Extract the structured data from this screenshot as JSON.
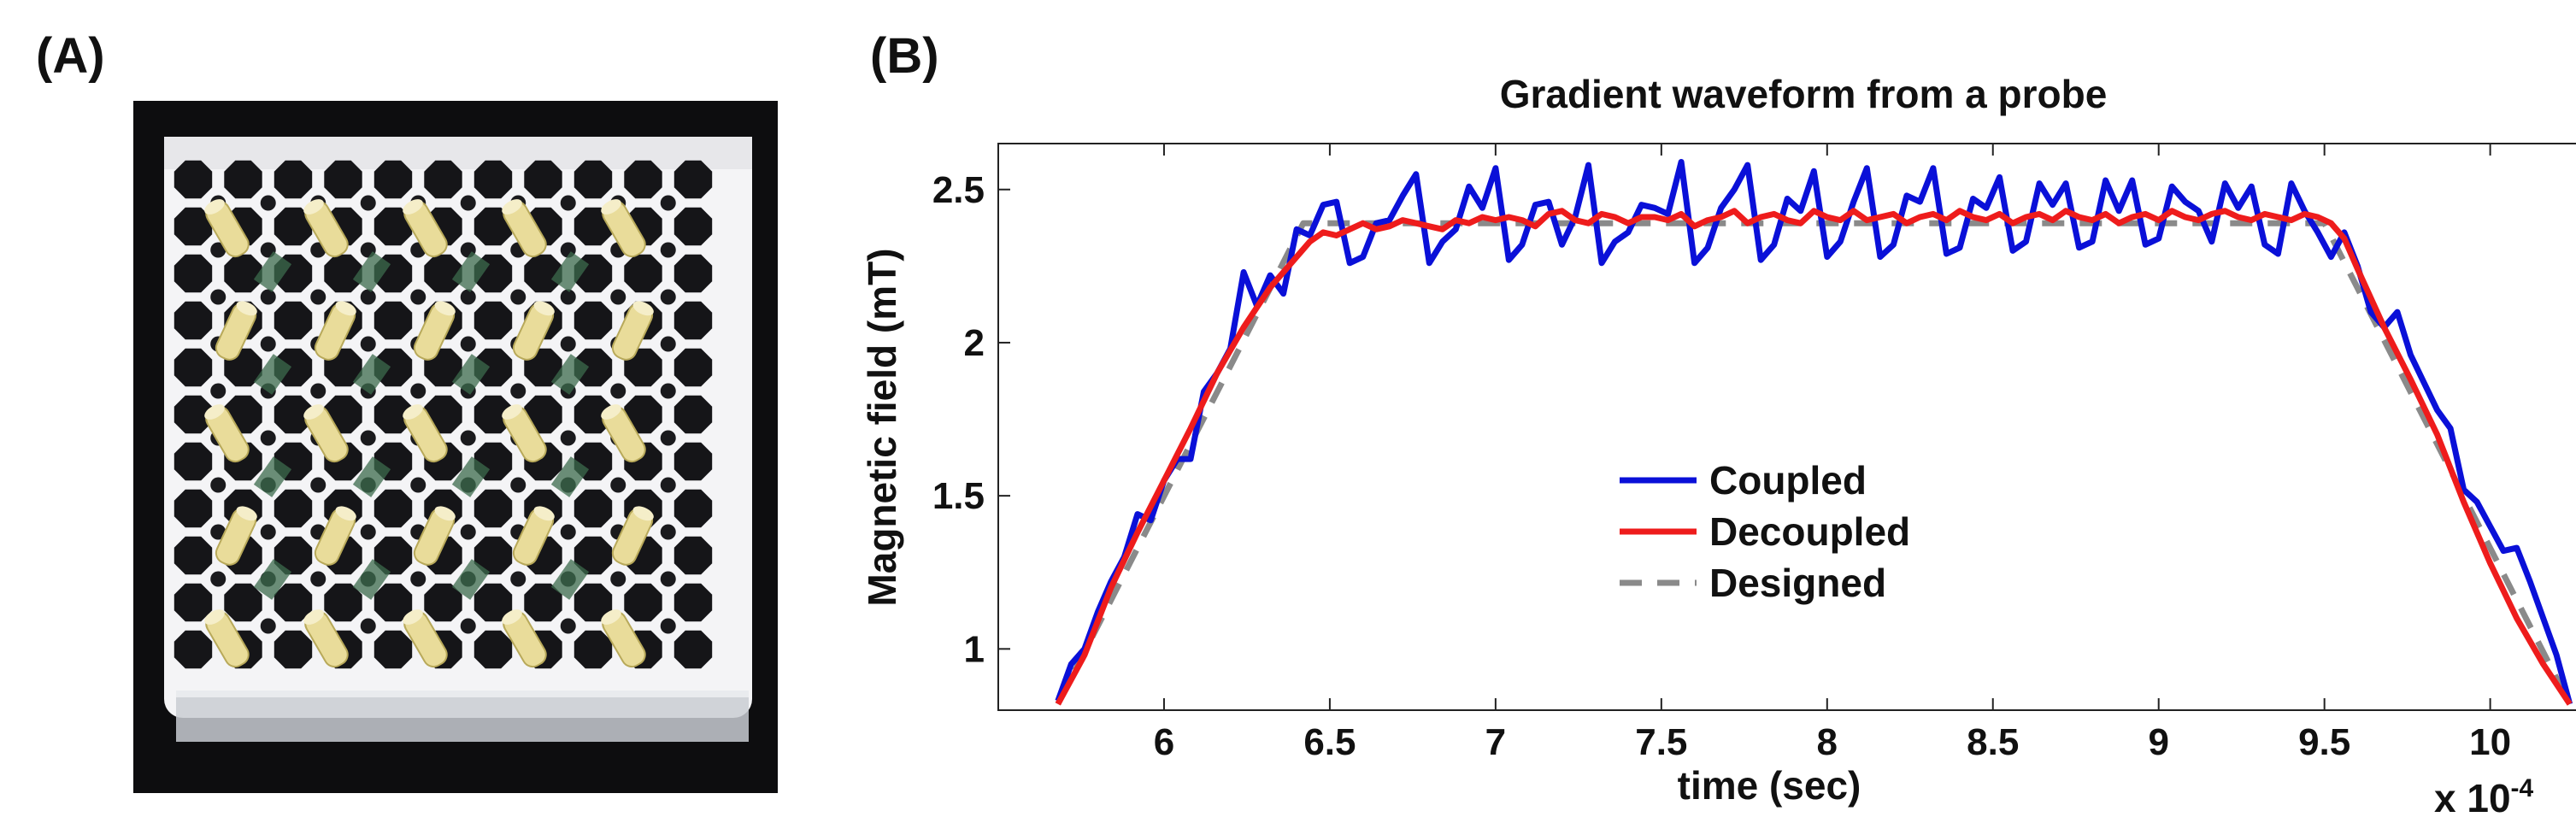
{
  "panels": {
    "a_label": "(A)",
    "b_label": "(B)"
  },
  "photo": {
    "description_icon": "multi-probe-array-photo"
  },
  "chart_data": {
    "type": "line",
    "title": "Gradient waveform from a probe",
    "xlabel": "time (sec)",
    "ylabel": "Magnetic field (mT)",
    "x_multiplier_label": "x 10",
    "x_multiplier_exp": "-4",
    "xlim": [
      5.5,
      10.3
    ],
    "ylim": [
      0.8,
      2.65
    ],
    "xticks": [
      6,
      6.5,
      7,
      7.5,
      8,
      8.5,
      9,
      9.5,
      10
    ],
    "xtick_labels": [
      "6",
      "6.5",
      "7",
      "7.5",
      "8",
      "8.5",
      "9",
      "9.5",
      "10"
    ],
    "yticks": [
      1,
      1.5,
      2,
      2.5
    ],
    "ytick_labels": [
      "1",
      "1.5",
      "2",
      "2.5"
    ],
    "legend_position": "center",
    "series": [
      {
        "name": "Coupled",
        "color": "#0a10d8",
        "style": "solid",
        "x": [
          5.68,
          5.72,
          5.76,
          5.8,
          5.84,
          5.88,
          5.92,
          5.96,
          6.0,
          6.04,
          6.08,
          6.12,
          6.16,
          6.2,
          6.24,
          6.28,
          6.32,
          6.36,
          6.4,
          6.44,
          6.48,
          6.52,
          6.56,
          6.6,
          6.64,
          6.68,
          6.72,
          6.76,
          6.8,
          6.84,
          6.88,
          6.92,
          6.96,
          7.0,
          7.04,
          7.08,
          7.12,
          7.16,
          7.2,
          7.24,
          7.28,
          7.32,
          7.36,
          7.4,
          7.44,
          7.48,
          7.52,
          7.56,
          7.6,
          7.64,
          7.68,
          7.72,
          7.76,
          7.8,
          7.84,
          7.88,
          7.92,
          7.96,
          8.0,
          8.04,
          8.08,
          8.12,
          8.16,
          8.2,
          8.24,
          8.28,
          8.32,
          8.36,
          8.4,
          8.44,
          8.48,
          8.52,
          8.56,
          8.6,
          8.64,
          8.68,
          8.72,
          8.76,
          8.8,
          8.84,
          8.88,
          8.92,
          8.96,
          9.0,
          9.04,
          9.08,
          9.12,
          9.16,
          9.2,
          9.24,
          9.28,
          9.32,
          9.36,
          9.4,
          9.44,
          9.48,
          9.52,
          9.56,
          9.6,
          9.64,
          9.68,
          9.72,
          9.76,
          9.8,
          9.84,
          9.88,
          9.92,
          9.96,
          10.0,
          10.04,
          10.08,
          10.12,
          10.16,
          10.2,
          10.24
        ],
        "values": [
          0.83,
          0.95,
          1.0,
          1.12,
          1.22,
          1.3,
          1.44,
          1.42,
          1.55,
          1.62,
          1.62,
          1.84,
          1.9,
          1.98,
          2.23,
          2.12,
          2.22,
          2.16,
          2.37,
          2.35,
          2.45,
          2.46,
          2.26,
          2.28,
          2.39,
          2.4,
          2.48,
          2.55,
          2.26,
          2.33,
          2.37,
          2.51,
          2.44,
          2.57,
          2.27,
          2.32,
          2.45,
          2.46,
          2.32,
          2.41,
          2.58,
          2.26,
          2.33,
          2.36,
          2.45,
          2.44,
          2.42,
          2.59,
          2.26,
          2.31,
          2.44,
          2.5,
          2.58,
          2.27,
          2.32,
          2.47,
          2.43,
          2.56,
          2.28,
          2.33,
          2.46,
          2.57,
          2.28,
          2.32,
          2.48,
          2.46,
          2.57,
          2.29,
          2.31,
          2.47,
          2.44,
          2.54,
          2.3,
          2.33,
          2.52,
          2.45,
          2.52,
          2.31,
          2.33,
          2.53,
          2.43,
          2.53,
          2.32,
          2.34,
          2.51,
          2.46,
          2.43,
          2.33,
          2.52,
          2.44,
          2.51,
          2.32,
          2.29,
          2.52,
          2.43,
          2.36,
          2.28,
          2.36,
          2.25,
          2.1,
          2.05,
          2.1,
          1.96,
          1.87,
          1.78,
          1.72,
          1.52,
          1.48,
          1.4,
          1.32,
          1.33,
          1.22,
          1.1,
          0.98,
          0.82
        ],
        "data_label": "Coupled"
      },
      {
        "name": "Decoupled",
        "color": "#ee1c1c",
        "style": "solid",
        "x": [
          5.68,
          5.76,
          5.84,
          5.92,
          6.0,
          6.08,
          6.16,
          6.24,
          6.32,
          6.4,
          6.44,
          6.48,
          6.52,
          6.56,
          6.6,
          6.64,
          6.68,
          6.72,
          6.76,
          6.8,
          6.84,
          6.88,
          6.92,
          6.96,
          7.0,
          7.04,
          7.08,
          7.12,
          7.16,
          7.2,
          7.24,
          7.28,
          7.32,
          7.36,
          7.4,
          7.44,
          7.48,
          7.52,
          7.56,
          7.6,
          7.64,
          7.68,
          7.72,
          7.76,
          7.8,
          7.84,
          7.88,
          7.92,
          7.96,
          8.0,
          8.04,
          8.08,
          8.12,
          8.16,
          8.2,
          8.24,
          8.28,
          8.32,
          8.36,
          8.4,
          8.44,
          8.48,
          8.52,
          8.56,
          8.6,
          8.64,
          8.68,
          8.72,
          8.76,
          8.8,
          8.84,
          8.88,
          8.92,
          8.96,
          9.0,
          9.04,
          9.08,
          9.12,
          9.16,
          9.2,
          9.24,
          9.28,
          9.32,
          9.36,
          9.4,
          9.44,
          9.48,
          9.52,
          9.56,
          9.6,
          9.68,
          9.76,
          9.84,
          9.92,
          10.0,
          10.08,
          10.16,
          10.24
        ],
        "values": [
          0.82,
          0.98,
          1.2,
          1.38,
          1.55,
          1.72,
          1.9,
          2.05,
          2.18,
          2.28,
          2.33,
          2.36,
          2.35,
          2.37,
          2.39,
          2.37,
          2.38,
          2.4,
          2.39,
          2.38,
          2.37,
          2.4,
          2.39,
          2.41,
          2.4,
          2.41,
          2.4,
          2.38,
          2.42,
          2.43,
          2.4,
          2.39,
          2.42,
          2.41,
          2.39,
          2.41,
          2.41,
          2.4,
          2.42,
          2.38,
          2.4,
          2.41,
          2.43,
          2.39,
          2.41,
          2.42,
          2.4,
          2.39,
          2.43,
          2.41,
          2.4,
          2.43,
          2.4,
          2.41,
          2.42,
          2.39,
          2.41,
          2.42,
          2.4,
          2.43,
          2.41,
          2.4,
          2.42,
          2.39,
          2.41,
          2.42,
          2.4,
          2.43,
          2.41,
          2.4,
          2.42,
          2.39,
          2.41,
          2.42,
          2.4,
          2.43,
          2.41,
          2.4,
          2.42,
          2.43,
          2.41,
          2.4,
          2.42,
          2.41,
          2.4,
          2.42,
          2.41,
          2.39,
          2.34,
          2.24,
          2.05,
          1.88,
          1.7,
          1.48,
          1.28,
          1.1,
          0.95,
          0.82
        ],
        "data_label": "Decoupled"
      },
      {
        "name": "Designed",
        "color": "#8a8a8a",
        "style": "dashed",
        "x": [
          5.68,
          6.42,
          9.5,
          10.24
        ],
        "values": [
          0.82,
          2.39,
          2.39,
          0.82
        ],
        "data_label": "Designed"
      }
    ]
  }
}
